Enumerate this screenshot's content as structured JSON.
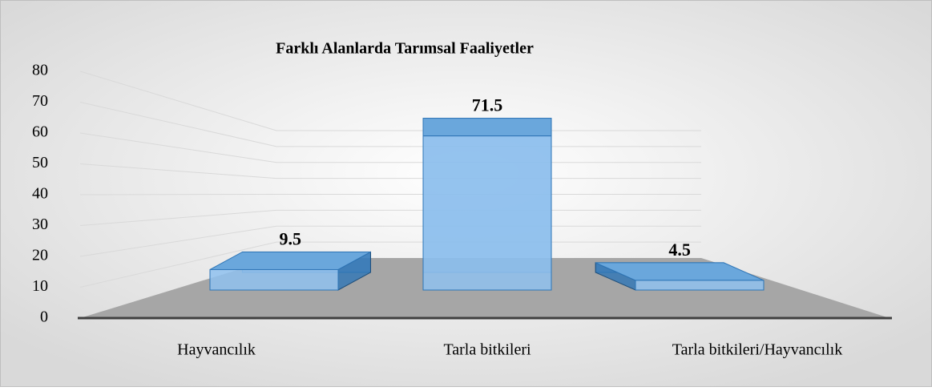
{
  "chart_data": {
    "type": "bar",
    "title": "Farklı Alanlarda Tarımsal Faaliyetler",
    "categories": [
      "Hayvancılık",
      "Tarla bitkileri",
      "Tarla bitkileri/Hayvancılık"
    ],
    "values": [
      9.5,
      71.5,
      4.5
    ],
    "color": "#5b9bd5",
    "ylim": [
      0,
      80
    ],
    "yticks": [
      0,
      10,
      20,
      30,
      40,
      50,
      60,
      70,
      80
    ],
    "grid": true
  }
}
